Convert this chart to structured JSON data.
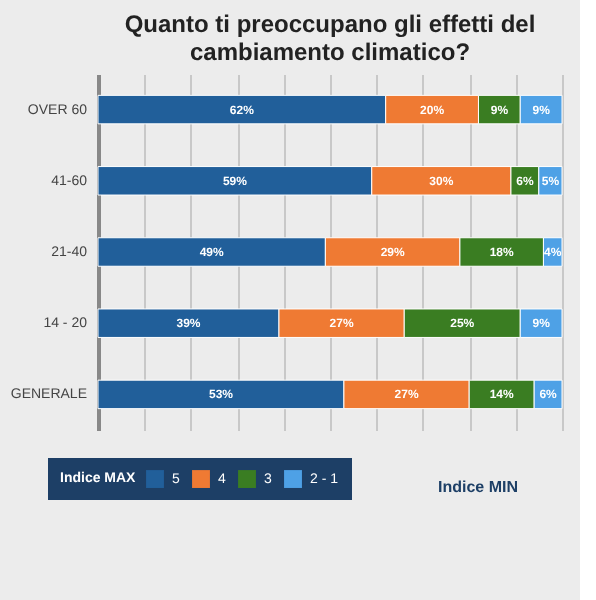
{
  "chart_data": {
    "type": "bar",
    "orientation": "horizontal",
    "stacked": true,
    "title": [
      "Quanto ti preoccupano gli effetti del",
      "cambiamento climatico?"
    ],
    "categories": [
      "OVER 60",
      "41-60",
      "21-40",
      "14 - 20",
      "GENERALE"
    ],
    "series": [
      {
        "name": "5",
        "color": "#215f9a",
        "values": [
          62,
          59,
          49,
          39,
          53
        ],
        "value_labels": [
          "62%",
          "59%",
          "49%",
          "39%",
          "53%"
        ]
      },
      {
        "name": "4",
        "color": "#ef7a33",
        "values": [
          20,
          30,
          29,
          27,
          27
        ],
        "value_labels": [
          "20%",
          "30%",
          "29%",
          "27%",
          "27%"
        ]
      },
      {
        "name": "3",
        "color": "#3a7d22",
        "values": [
          9,
          6,
          18,
          25,
          14
        ],
        "value_labels": [
          "9%",
          "6%",
          "18%",
          "25%",
          "14%"
        ]
      },
      {
        "name": "2 - 1",
        "color": "#4ea1e6",
        "values": [
          9,
          5,
          4,
          9,
          6
        ],
        "value_labels": [
          "9%",
          "5%",
          "4%",
          "9%",
          "6%"
        ]
      }
    ],
    "xlim": [
      0,
      100
    ],
    "grid": "x",
    "tick_labels": "y",
    "legend": "bottom",
    "legend_title": "Indice MAX",
    "annotations": [
      "Indice MIN"
    ]
  }
}
